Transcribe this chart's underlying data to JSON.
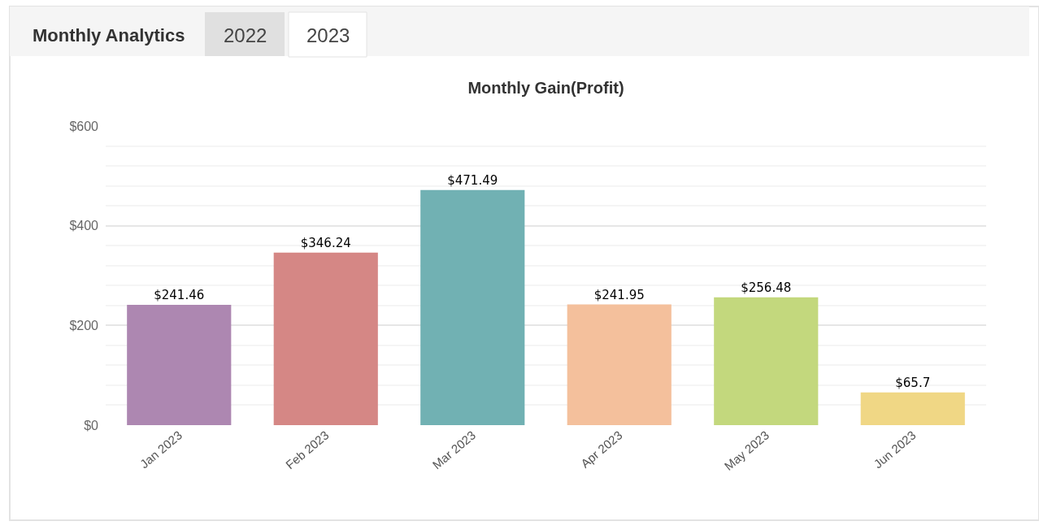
{
  "chart_data": {
    "type": "bar",
    "title": "Monthly Gain(Profit)",
    "annotations": [
      "Monthly Analytics",
      "2022",
      "2023"
    ],
    "categories": [
      "Jan 2023",
      "Feb 2023",
      "Mar 2023",
      "Apr 2023",
      "May 2023",
      "Jun 2023"
    ],
    "values": [
      241.46,
      346.24,
      471.49,
      241.95,
      256.48,
      65.7
    ],
    "value_labels": [
      "$241.46",
      "$346.24",
      "$471.49",
      "$241.95",
      "$256.48",
      "$65.7"
    ],
    "colors": [
      "#ad87b1",
      "#d58785",
      "#71b1b3",
      "#f4c09c",
      "#c3d87d",
      "#f0d785"
    ],
    "ylim": [
      0,
      600
    ],
    "yticks": [
      {
        "value": 0,
        "label": "$0"
      },
      {
        "value": 200,
        "label": "$200"
      },
      {
        "value": 400,
        "label": "$400"
      },
      {
        "value": 600,
        "label": "$600"
      }
    ],
    "grid": "y"
  }
}
